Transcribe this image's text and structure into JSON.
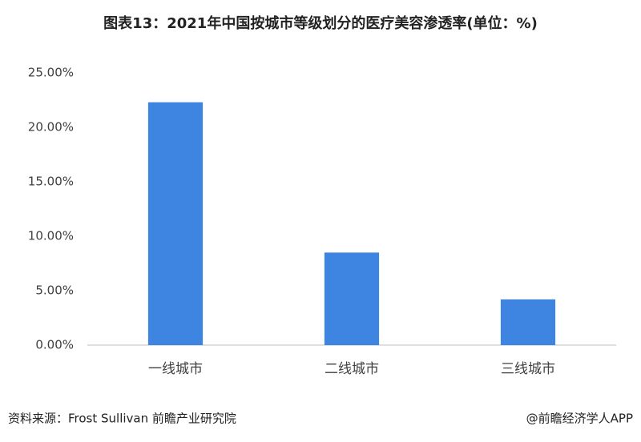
{
  "chart_data": {
    "type": "bar",
    "title": "图表13：2021年中国按城市等级划分的医疗美容渗透率(单位：%)",
    "categories": [
      "一线城市",
      "二线城市",
      "三线城市"
    ],
    "values": [
      22.3,
      8.5,
      4.2
    ],
    "color": "#3d85e0",
    "ylim": [
      0,
      25
    ],
    "yticks": [
      {
        "value": 0,
        "label": "0.00%"
      },
      {
        "value": 5,
        "label": "5.00%"
      },
      {
        "value": 10,
        "label": "10.00%"
      },
      {
        "value": 15,
        "label": "15.00%"
      },
      {
        "value": 20,
        "label": "20.00%"
      },
      {
        "value": 25,
        "label": "25.00%"
      }
    ],
    "grid": false,
    "source": "资料来源：Frost Sullivan 前瞻产业研究院",
    "credit": "@前瞻经济学人APP"
  }
}
